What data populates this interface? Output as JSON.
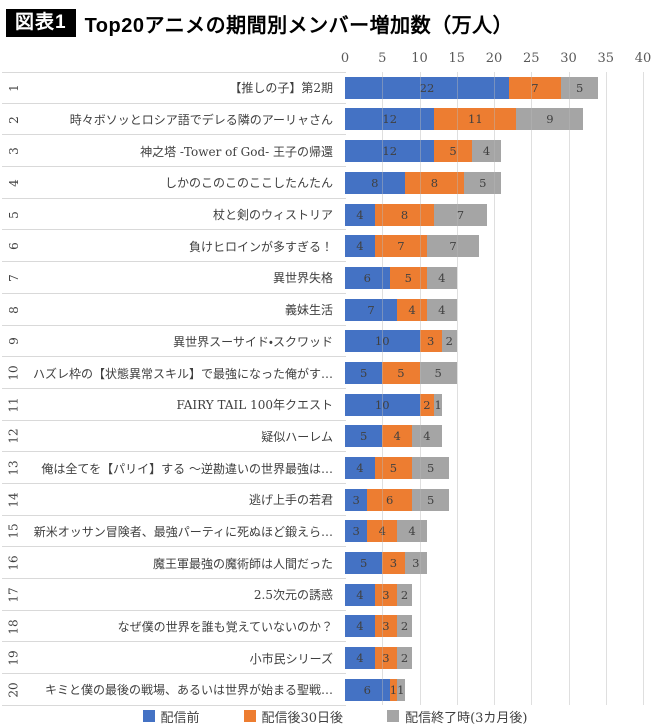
{
  "header": {
    "badge": "図表1",
    "title": "Top20アニメの期間別メンバー増加数（万人）"
  },
  "axis": {
    "ticks": [
      0,
      5,
      10,
      15,
      20,
      25,
      30,
      35,
      40
    ]
  },
  "legend": [
    {
      "label": "配信前",
      "color": "#4472C4"
    },
    {
      "label": "配信後30日後",
      "color": "#ED7D31"
    },
    {
      "label": "配信終了時(3カ月後)",
      "color": "#A5A5A5"
    }
  ],
  "colors": {
    "blue": "#4472C4",
    "orange": "#ED7D31",
    "gray": "#A5A5A5",
    "gridline": "#D9D9D9",
    "label": "#404040"
  },
  "chart_data": {
    "type": "bar",
    "orientation": "horizontal",
    "stacked": true,
    "title": "Top20アニメの期間別メンバー増加数（万人）",
    "xlabel": "万人",
    "xlim": [
      0,
      40
    ],
    "x_ticks": [
      0,
      5,
      10,
      15,
      20,
      25,
      30,
      35,
      40
    ],
    "grid": true,
    "legend_position": "bottom",
    "ranks": [
      "1",
      "2",
      "3",
      "4",
      "5",
      "6",
      "7",
      "8",
      "9",
      "10",
      "11",
      "12",
      "13",
      "14",
      "15",
      "16",
      "17",
      "18",
      "19",
      "20"
    ],
    "categories": [
      "【推しの子】第2期",
      "時々ボソッとロシア語でデレる隣のアーリャさん",
      "神之塔 -Tower of God- 王子の帰還",
      "しかのこのこのここしたんたん",
      "杖と剣のウィストリア",
      "負けヒロインが多すぎる！",
      "異世界失格",
      "義妹生活",
      "異世界スーサイド・スクワッド",
      "ハズレ枠の【状態異常スキル】で最強になった俺がす…",
      "FAIRY TAIL 100年クエスト",
      "疑似ハーレム",
      "俺は全てを【パリイ】する ～逆勘違いの世界最強は…",
      "逃げ上手の若君",
      "新米オッサン冒険者、最強パーティに死ぬほど鍛えら…",
      "魔王軍最強の魔術師は人間だった",
      "2.5次元の誘惑",
      "なぜ僕の世界を誰も覚えていないのか？",
      "小市民シリーズ",
      "キミと僕の最後の戦場、あるいは世界が始まる聖戦…"
    ],
    "series": [
      {
        "name": "配信前",
        "color": "#4472C4",
        "values": [
          22,
          12,
          12,
          8,
          4,
          4,
          6,
          7,
          10,
          5,
          10,
          5,
          4,
          3,
          3,
          5,
          4,
          4,
          4,
          6
        ]
      },
      {
        "name": "配信後30日後",
        "color": "#ED7D31",
        "values": [
          7,
          11,
          5,
          8,
          8,
          7,
          5,
          4,
          3,
          5,
          2,
          4,
          5,
          6,
          4,
          3,
          3,
          3,
          3,
          1
        ]
      },
      {
        "name": "配信終了時(3カ月後)",
        "color": "#A5A5A5",
        "values": [
          5,
          9,
          4,
          5,
          7,
          7,
          4,
          4,
          2,
          5,
          1,
          4,
          5,
          5,
          4,
          3,
          2,
          2,
          2,
          1
        ]
      }
    ]
  }
}
